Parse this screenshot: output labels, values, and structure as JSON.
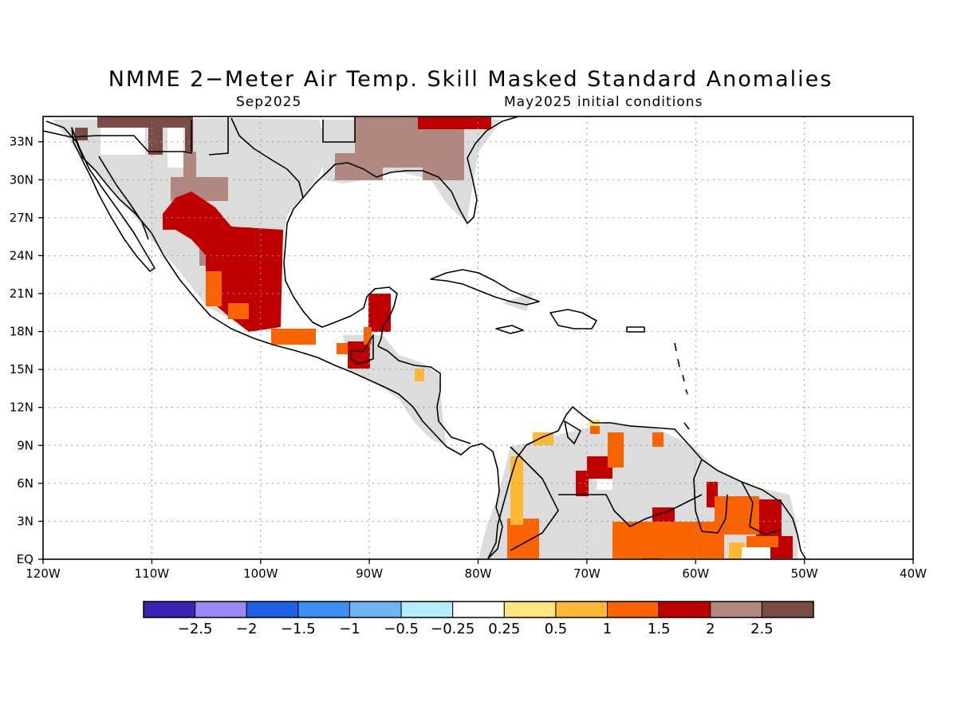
{
  "title": "NMME 2−Meter Air Temp. Skill Masked Standard Anomalies",
  "subtitle_left": "Sep2025",
  "subtitle_right": "May2025 initial conditions",
  "map": {
    "lon_range": [
      -120,
      -40
    ],
    "lat_range": [
      0,
      35
    ],
    "lon_labels": [
      "120W",
      "110W",
      "100W",
      "90W",
      "80W",
      "70W",
      "60W",
      "50W",
      "40W"
    ],
    "lat_labels": [
      "EQ",
      "3N",
      "6N",
      "9N",
      "12N",
      "15N",
      "18N",
      "21N",
      "24N",
      "27N",
      "30N",
      "33N"
    ],
    "grid": "dotted",
    "mask_color": "#dcdcdc",
    "coastline_color": "#000000"
  },
  "colorbar": {
    "colors": [
      "#3a23b4",
      "#9b87f5",
      "#1f62e6",
      "#3b8ff0",
      "#6fb4f2",
      "#b5ecfa",
      "#ffffff",
      "#ffe57f",
      "#fdb933",
      "#fa6400",
      "#c00000",
      "#b08880",
      "#7a4c43"
    ],
    "labels": [
      "−2.5",
      "−2",
      "−1.5",
      "−1",
      "−0.5",
      "−0.25",
      "0.25",
      "0.5",
      "1",
      "1.5",
      "2",
      "2.5"
    ]
  }
}
